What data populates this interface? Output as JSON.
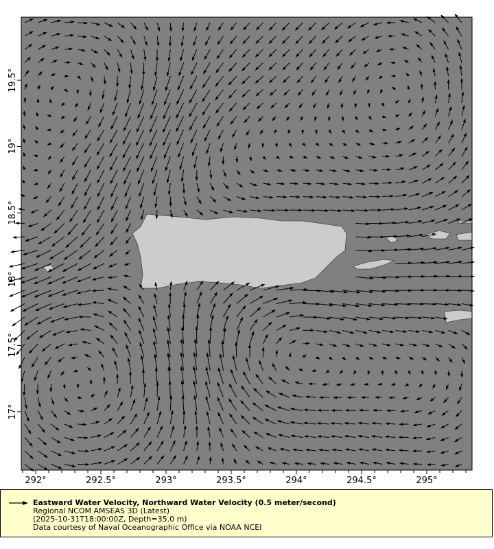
{
  "map": {
    "x_ticks": [
      "292°",
      "292.5°",
      "293°",
      "293.5°",
      "294°",
      "294.5°",
      "295°"
    ],
    "y_ticks": [
      "17°",
      "17.5°",
      "18°",
      "18.5°",
      "19°",
      "19.5°"
    ],
    "colors": {
      "water": "#808080",
      "land": "#cccccc",
      "vectors": "#000000",
      "legend_bg": "#ffffcc"
    }
  },
  "legend": {
    "title": "Eastward Water Velocity, Northward Water Velocity (0.5 meter/second)",
    "dataset": "Regional NCOM AMSEAS 3D (Latest)",
    "time_depth": "(2025-10-31T18:00:00Z, Depth=35.0 m)",
    "credit": "Data courtesy of Naval Oceanographic Office via NOAA NCEI"
  }
}
